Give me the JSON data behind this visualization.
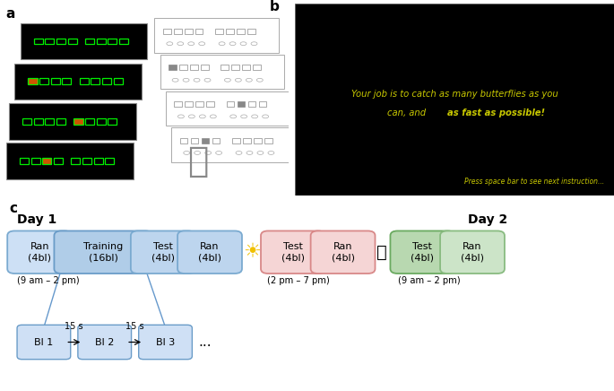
{
  "panel_a_label": "a",
  "panel_b_label": "b",
  "panel_c_label": "c",
  "panel_b_footer": "Press space bar to see next instruction...",
  "day1_label": "Day 1",
  "day2_label": "Day 2",
  "time1": "(9 am – 2 pm)",
  "time2": "(2 pm – 7 pm)",
  "time3": "(9 am – 2 pm)",
  "boxes_day1": [
    {
      "label": "Ran\n(4bl)",
      "color_face": "#cde0f5",
      "color_edge": "#7aaad0"
    },
    {
      "label": "Training\n(16bl)",
      "color_face": "#b0cde8",
      "color_edge": "#6a9cc8"
    },
    {
      "label": "Test\n(4bl)",
      "color_face": "#bdd5ee",
      "color_edge": "#7aaad0"
    },
    {
      "label": "Ran\n(4bl)",
      "color_face": "#bdd5ee",
      "color_edge": "#7aaad0"
    }
  ],
  "boxes_midday": [
    {
      "label": "Test\n(4bl)",
      "color_face": "#f5d5d5",
      "color_edge": "#d88888"
    },
    {
      "label": "Ran\n(4bl)",
      "color_face": "#f5d5d5",
      "color_edge": "#d88888"
    }
  ],
  "boxes_day2": [
    {
      "label": "Test\n(4bl)",
      "color_face": "#b8d8b0",
      "color_edge": "#6aaa60"
    },
    {
      "label": "Ran\n(4bl)",
      "color_face": "#cce4c8",
      "color_edge": "#88bb80"
    }
  ],
  "block_boxes": [
    "Bl 1",
    "Bl 2",
    "Bl 3"
  ],
  "block_interval": "15 s",
  "text_color_b": "#c8c800",
  "footer_color_b": "#c8c800"
}
